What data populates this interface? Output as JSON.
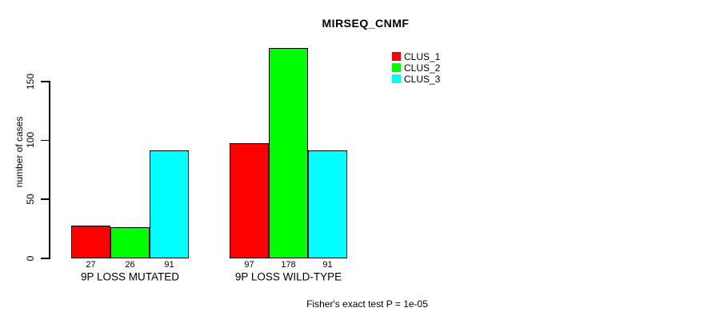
{
  "chart_data": {
    "type": "bar",
    "title": "MIRSEQ_CNMF",
    "ylabel": "number of cases",
    "xlabel": "",
    "ylim": [
      0,
      178
    ],
    "yticks": [
      0,
      50,
      100,
      150
    ],
    "grid": false,
    "legend_position": "top-right",
    "categories": [
      "9P LOSS MUTATED",
      "9P LOSS WILD-TYPE"
    ],
    "series": [
      {
        "name": "CLUS_1",
        "color": "#ff0000",
        "values": [
          27,
          97
        ]
      },
      {
        "name": "CLUS_2",
        "color": "#00ff00",
        "values": [
          26,
          178
        ]
      },
      {
        "name": "CLUS_3",
        "color": "#00ffff",
        "values": [
          91,
          91
        ]
      }
    ],
    "bar_value_labels": [
      [
        27,
        26,
        91
      ],
      [
        97,
        178,
        91
      ]
    ],
    "annotation": "Fisher's exact test P = 1e-05"
  },
  "colors": {
    "axis": "#000000",
    "text": "#000000",
    "background": "#ffffff"
  }
}
